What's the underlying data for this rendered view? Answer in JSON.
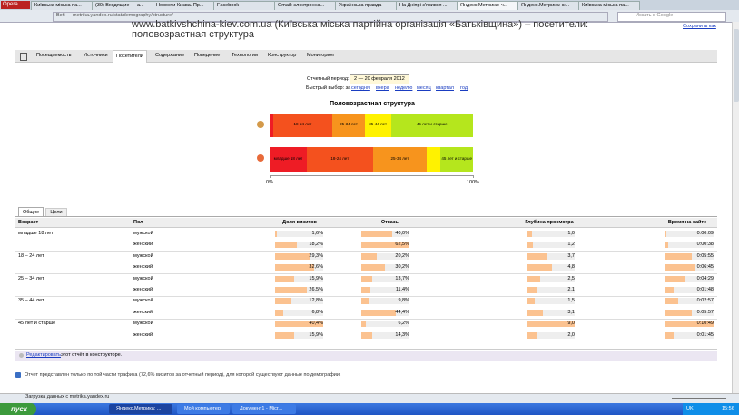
{
  "browser": {
    "menu": "Opera",
    "tabs": [
      "Київська міська па...",
      "(30) Входящие — а...",
      "Новости Києва. Пр...",
      "Facebook",
      "Gmail: электронна...",
      "Українська правда",
      "На Дніпрі з'явився ...",
      "Яндекс.Метрика: ч...",
      "Яндекс.Метрика: ж...",
      "Київська міська па..."
    ],
    "address_label": "Веб",
    "url": "metrika.yandex.ru/stat/demography/structure/",
    "search": "Искать в Google"
  },
  "page": {
    "title": "www.batkivshchina-kiev.com.ua (Київська міська партійна організація «Батьківщина») – посетители: половозрастная структура",
    "save": "Сохранить как"
  },
  "nav": [
    "Посещаемость",
    "Источники",
    "Посетители",
    "Содержание",
    "Поведение",
    "Технологии",
    "Конструктор",
    "Мониторинг"
  ],
  "period": {
    "label": "Отчетный период:",
    "value": "2 — 20 февраля 2012",
    "quick_label": "Быстрый выбор: за",
    "quick": [
      "сегодня",
      "вчера",
      "неделю",
      "месяц",
      "квартал",
      "год"
    ]
  },
  "chart": {
    "title": "Половозрастная структура",
    "colors": [
      "#ee1c25",
      "#f4511e",
      "#f7941d",
      "#fff200",
      "#b5e61d"
    ],
    "xlim": [
      0,
      100
    ],
    "xticks": [
      {
        "value": 0,
        "label": "0%"
      },
      {
        "value": 100,
        "label": "100%"
      }
    ],
    "bars": [
      {
        "values": [
          1.6,
          29.3,
          15.9,
          12.8,
          40.4
        ],
        "labels": [
          null,
          "18-24 лет",
          "25-34 лет",
          "35-44 лет",
          "45 лет и старше"
        ]
      },
      {
        "values": [
          18.2,
          32.6,
          26.5,
          6.8,
          15.9
        ],
        "labels": [
          "младше 18 лет",
          "18-24 лет",
          "25-34 лет",
          null,
          "45 лет и старше"
        ]
      }
    ]
  },
  "table": {
    "tabs": [
      "Общие",
      "Цели"
    ],
    "headers": [
      "Возраст",
      "Пол",
      "Доля визитов",
      "Отказы",
      "Глубина просмотра",
      "Время на сайте"
    ],
    "rows": [
      {
        "age": "младше 18 лет",
        "sex": "мужской",
        "share": 1.6,
        "share_label": "1,6%",
        "bounce": 40.0,
        "bounce_label": "40,0%",
        "depth": 1.0,
        "depth_label": "1,0",
        "time": 9,
        "time_label": "0:00:09"
      },
      {
        "age": null,
        "sex": "женский",
        "share": 18.2,
        "share_label": "18,2%",
        "bounce": 62.5,
        "bounce_label": "62,5%",
        "depth": 1.2,
        "depth_label": "1,2",
        "time": 38,
        "time_label": "0:00:38"
      },
      {
        "age": "18 – 24 лет",
        "sex": "мужской",
        "share": 29.3,
        "share_label": "29,3%",
        "bounce": 20.2,
        "bounce_label": "20,2%",
        "depth": 3.7,
        "depth_label": "3,7",
        "time": 355,
        "time_label": "0:05:55"
      },
      {
        "age": null,
        "sex": "женский",
        "share": 32.6,
        "share_label": "32,6%",
        "bounce": 30.2,
        "bounce_label": "30,2%",
        "depth": 4.8,
        "depth_label": "4,8",
        "time": 405,
        "time_label": "0:06:45"
      },
      {
        "age": "25 – 34 лет",
        "sex": "мужской",
        "share": 15.9,
        "share_label": "15,9%",
        "bounce": 13.7,
        "bounce_label": "13,7%",
        "depth": 2.5,
        "depth_label": "2,5",
        "time": 269,
        "time_label": "0:04:29"
      },
      {
        "age": null,
        "sex": "женский",
        "share": 26.5,
        "share_label": "26,5%",
        "bounce": 11.4,
        "bounce_label": "11,4%",
        "depth": 2.1,
        "depth_label": "2,1",
        "time": 108,
        "time_label": "0:01:48"
      },
      {
        "age": "35 – 44 лет",
        "sex": "мужской",
        "share": 12.8,
        "share_label": "12,8%",
        "bounce": 9.8,
        "bounce_label": "9,8%",
        "depth": 1.5,
        "depth_label": "1,5",
        "time": 177,
        "time_label": "0:02:57"
      },
      {
        "age": null,
        "sex": "женский",
        "share": 6.8,
        "share_label": "6,8%",
        "bounce": 44.4,
        "bounce_label": "44,4%",
        "depth": 3.1,
        "depth_label": "3,1",
        "time": 357,
        "time_label": "0:05:57"
      },
      {
        "age": "45 лет и старше",
        "sex": "мужской",
        "share": 40.4,
        "share_label": "40,4%",
        "bounce": 6.2,
        "bounce_label": "6,2%",
        "depth": 9.0,
        "depth_label": "9,0",
        "time": 649,
        "time_label": "0:10:49"
      },
      {
        "age": null,
        "sex": "женский",
        "share": 15.9,
        "share_label": "15,9%",
        "bounce": 14.3,
        "bounce_label": "14,3%",
        "depth": 2.0,
        "depth_label": "2,0",
        "time": 105,
        "time_label": "0:01:45"
      }
    ]
  },
  "edit": {
    "link": "Редактировать",
    "text": "этот отчёт в конструкторе."
  },
  "note": "Отчет представлен только по той части трафика (72,6% визитов за отчетный период), для которой существуют данные по демографии.",
  "status": "Загрузка данных с metrika.yandex.ru",
  "taskbar": {
    "start": "пуск",
    "items": [
      "Яндекс.Метрика: ...",
      "Мой компьютер",
      "Документ1 - Micr..."
    ],
    "lang": "UK",
    "clock": "15:56"
  }
}
